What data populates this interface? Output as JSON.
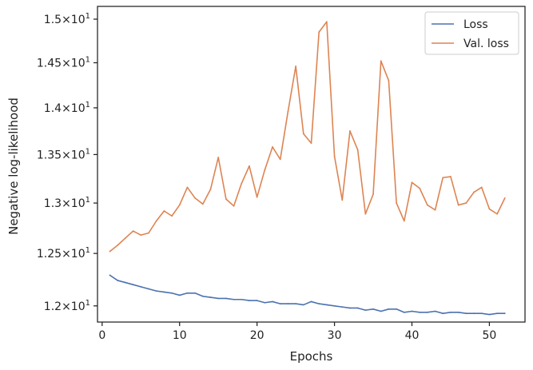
{
  "chart_data": {
    "type": "line",
    "xlabel": "Epochs",
    "ylabel": "Negative log-likelihood",
    "xlim": [
      -0.6,
      54.6
    ],
    "ylim": [
      11.85,
      15.15
    ],
    "y_scale": "log",
    "grid": false,
    "legend_position": "top-right",
    "x_ticks": [
      0,
      10,
      20,
      30,
      40,
      50
    ],
    "x_tick_labels": [
      "0",
      "10",
      "20",
      "30",
      "40",
      "50"
    ],
    "y_ticks": [
      12.0,
      12.5,
      13.0,
      13.5,
      14.0,
      14.5,
      15.0
    ],
    "y_tick_labels": [
      {
        "mantissa": "1.2",
        "base": "10",
        "exp": "1"
      },
      {
        "mantissa": "1.25",
        "base": "10",
        "exp": "1"
      },
      {
        "mantissa": "1.3",
        "base": "10",
        "exp": "1"
      },
      {
        "mantissa": "1.35",
        "base": "10",
        "exp": "1"
      },
      {
        "mantissa": "1.4",
        "base": "10",
        "exp": "1"
      },
      {
        "mantissa": "1.45",
        "base": "10",
        "exp": "1"
      },
      {
        "mantissa": "1.5",
        "base": "10",
        "exp": "1"
      }
    ],
    "x": [
      1,
      2,
      3,
      4,
      5,
      6,
      7,
      8,
      9,
      10,
      11,
      12,
      13,
      14,
      15,
      16,
      17,
      18,
      19,
      20,
      21,
      22,
      23,
      24,
      25,
      26,
      27,
      28,
      29,
      30,
      31,
      32,
      33,
      34,
      35,
      36,
      37,
      38,
      39,
      40,
      41,
      42,
      43,
      44,
      45,
      46,
      47,
      48,
      49,
      50,
      51,
      52
    ],
    "series": [
      {
        "name": "Loss",
        "color": "#4c72b0",
        "values": [
          12.29,
          12.24,
          12.22,
          12.2,
          12.18,
          12.16,
          12.14,
          12.13,
          12.12,
          12.1,
          12.12,
          12.12,
          12.09,
          12.08,
          12.07,
          12.07,
          12.06,
          12.06,
          12.05,
          12.05,
          12.03,
          12.04,
          12.02,
          12.02,
          12.02,
          12.01,
          12.04,
          12.02,
          12.01,
          12.0,
          11.99,
          11.98,
          11.98,
          11.96,
          11.97,
          11.95,
          11.97,
          11.97,
          11.94,
          11.95,
          11.94,
          11.94,
          11.95,
          11.93,
          11.94,
          11.94,
          11.93,
          11.93,
          11.93,
          11.92,
          11.93,
          11.93
        ]
      },
      {
        "name": "Val. loss",
        "color": "#dd8452",
        "values": [
          12.52,
          12.58,
          12.65,
          12.72,
          12.68,
          12.7,
          12.82,
          12.92,
          12.87,
          12.98,
          13.16,
          13.05,
          12.99,
          13.14,
          13.47,
          13.04,
          12.97,
          13.2,
          13.38,
          13.06,
          13.34,
          13.58,
          13.45,
          13.96,
          14.46,
          13.72,
          13.62,
          14.85,
          14.97,
          13.48,
          13.03,
          13.75,
          13.55,
          12.89,
          13.09,
          14.52,
          14.3,
          13.0,
          12.82,
          13.21,
          13.15,
          12.98,
          12.93,
          13.26,
          13.27,
          12.98,
          13.0,
          13.11,
          13.16,
          12.94,
          12.89,
          13.05
        ]
      }
    ]
  }
}
